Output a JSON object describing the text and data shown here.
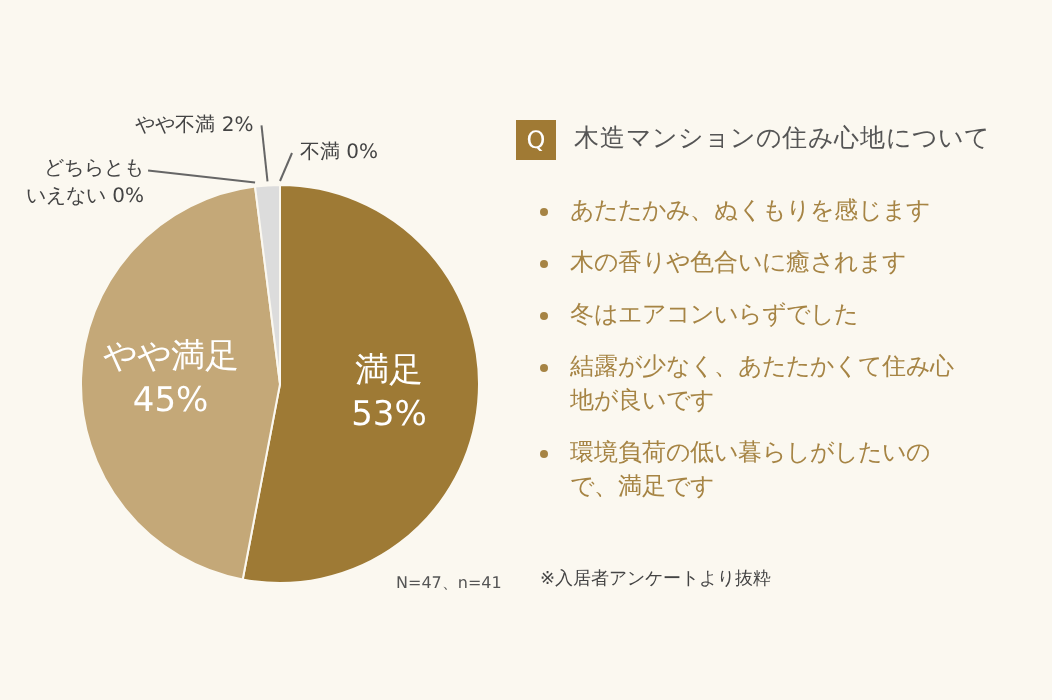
{
  "chart_data": {
    "type": "pie",
    "title": "木造マンションの住み心地について",
    "categories": [
      "満足",
      "やや満足",
      "どちらともいえない",
      "やや不満",
      "不満"
    ],
    "values": [
      53,
      45,
      0,
      2,
      0
    ],
    "value_labels": [
      "53%",
      "45%",
      "0%",
      "2%",
      "0%"
    ],
    "colors": [
      "#9e7a35",
      "#c4a878",
      "#d9d9d9",
      "#dcdcdc",
      "#b0b0b0"
    ],
    "annotations": [
      "Q",
      "あたたかみ、ぬくもりを感じます",
      "木の香りや色合いに癒されます",
      "冬はエアコンいらずでした",
      "結露が少なく、あたたかくて住み心地が良いです",
      "環境負荷の低い暮らしがしたいので、満足です",
      "N=47、n=41",
      "※入居者アンケートより抜粋"
    ]
  }
}
